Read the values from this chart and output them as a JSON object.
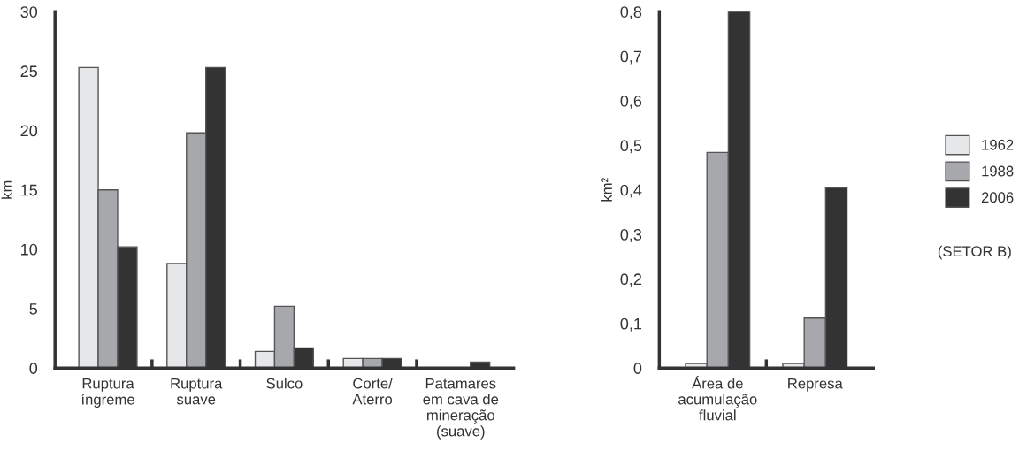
{
  "chart_data": [
    {
      "type": "bar",
      "ylabel": "km",
      "categories": [
        "Ruptura\níngreme",
        "Ruptura\nsuave",
        "Sulco",
        "Corte/\nAterro",
        "Patamares\nem cava de\nmineração\n(suave)"
      ],
      "series": [
        {
          "name": "1962",
          "color": "#e6e7e9",
          "values": [
            25.3,
            8.8,
            1.4,
            0.8,
            0
          ]
        },
        {
          "name": "1988",
          "color": "#a7a8ab",
          "values": [
            15,
            19.8,
            5.2,
            0.8,
            0
          ]
        },
        {
          "name": "2006",
          "color": "#333333",
          "values": [
            10.2,
            25.3,
            1.7,
            0.8,
            0.5
          ]
        }
      ],
      "ylim": [
        0,
        30
      ],
      "yticks": [
        0,
        5,
        10,
        15,
        20,
        25,
        30
      ],
      "grid": false,
      "legend": "right"
    },
    {
      "type": "bar",
      "ylabel": "km²",
      "categories": [
        "Área de\nacumulação\nfluvial",
        "Represa"
      ],
      "series": [
        {
          "name": "1962",
          "color": "#e6e7e9",
          "values": [
            0.01,
            0.01
          ]
        },
        {
          "name": "1988",
          "color": "#a7a8ab",
          "values": [
            0.484,
            0.112
          ]
        },
        {
          "name": "2006",
          "color": "#333333",
          "values": [
            0.8,
            0.405
          ]
        }
      ],
      "ylim": [
        0,
        0.8
      ],
      "yticks": [
        {
          "value": 0,
          "label": "0"
        },
        {
          "value": 0.1,
          "label": "0,1"
        },
        {
          "value": 0.2,
          "label": "0,2"
        },
        {
          "value": 0.3,
          "label": "0,3"
        },
        {
          "value": 0.4,
          "label": "0,4"
        },
        {
          "value": 0.5,
          "label": "0,5"
        },
        {
          "value": 0.6,
          "label": "0,6"
        },
        {
          "value": 0.7,
          "label": "0,7"
        },
        {
          "value": 0.8,
          "label": "0,8"
        }
      ],
      "grid": false,
      "legend": false,
      "annotations": [
        "(SETOR B)"
      ]
    }
  ]
}
